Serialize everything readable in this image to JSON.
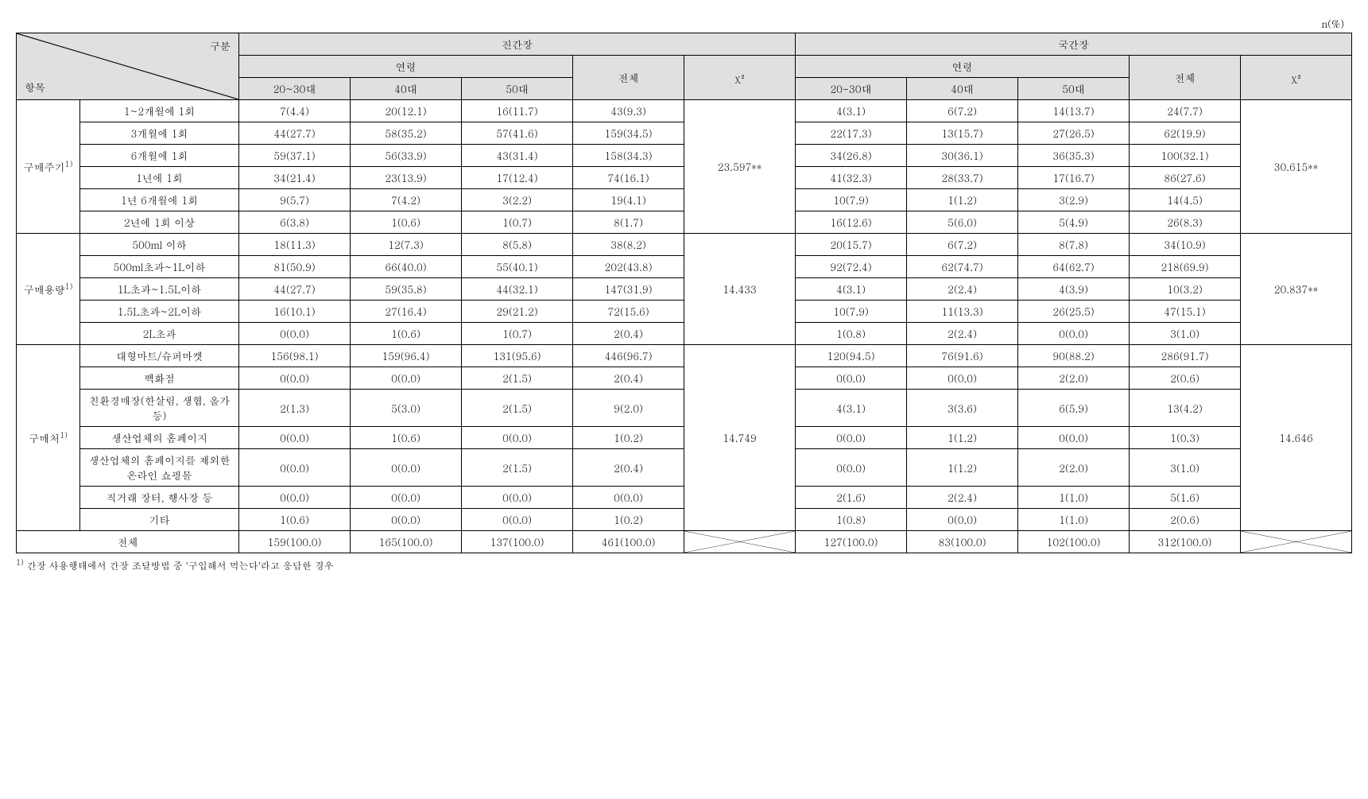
{
  "unit": "n(%)",
  "headers": {
    "diag_top": "구분",
    "diag_bottom": "항목",
    "group1": "진간장",
    "group2": "국간장",
    "age": "연령",
    "total": "전체",
    "chi": "χ²",
    "age_cols_g1": [
      "20~30대",
      "40대",
      "50대"
    ],
    "age_cols_g2": [
      "20-30대",
      "40대",
      "50대"
    ]
  },
  "sections": [
    {
      "name": "구매주기",
      "sup": "1)",
      "chi1": "23.597**",
      "chi2": "30.615**",
      "rows": [
        {
          "label": "1~2개월에 1회",
          "g1": [
            "7(4.4)",
            "20(12.1)",
            "16(11.7)",
            "43(9.3)"
          ],
          "g2": [
            "4(3.1)",
            "6(7.2)",
            "14(13.7)",
            "24(7.7)"
          ]
        },
        {
          "label": "3개월에 1회",
          "g1": [
            "44(27.7)",
            "58(35.2)",
            "57(41.6)",
            "159(34.5)"
          ],
          "g2": [
            "22(17.3)",
            "13(15.7)",
            "27(26.5)",
            "62(19.9)"
          ]
        },
        {
          "label": "6개월에 1회",
          "g1": [
            "59(37.1)",
            "56(33.9)",
            "43(31.4)",
            "158(34.3)"
          ],
          "g2": [
            "34(26.8)",
            "30(36.1)",
            "36(35.3)",
            "100(32.1)"
          ]
        },
        {
          "label": "1년에 1회",
          "g1": [
            "34(21.4)",
            "23(13.9)",
            "17(12.4)",
            "74(16.1)"
          ],
          "g2": [
            "41(32.3)",
            "28(33.7)",
            "17(16.7)",
            "86(27.6)"
          ]
        },
        {
          "label": "1년 6개월에 1회",
          "g1": [
            "9(5.7)",
            "7(4.2)",
            "3(2.2)",
            "19(4.1)"
          ],
          "g2": [
            "10(7.9)",
            "1(1.2)",
            "3(2.9)",
            "14(4.5)"
          ]
        },
        {
          "label": "2년에 1회 이상",
          "g1": [
            "6(3.8)",
            "1(0.6)",
            "1(0.7)",
            "8(1.7)"
          ],
          "g2": [
            "16(12.6)",
            "5(6.0)",
            "5(4.9)",
            "26(8.3)"
          ]
        }
      ]
    },
    {
      "name": "구매용량",
      "sup": "1)",
      "chi1": "14.433",
      "chi2": "20.837**",
      "rows": [
        {
          "label": "500ml 이하",
          "g1": [
            "18(11.3)",
            "12(7.3)",
            "8(5.8)",
            "38(8.2)"
          ],
          "g2": [
            "20(15.7)",
            "6(7.2)",
            "8(7.8)",
            "34(10.9)"
          ]
        },
        {
          "label": "500ml초과~1L이하",
          "g1": [
            "81(50.9)",
            "66(40.0)",
            "55(40.1)",
            "202(43.8)"
          ],
          "g2": [
            "92(72.4)",
            "62(74.7)",
            "64(62.7)",
            "218(69.9)"
          ]
        },
        {
          "label": "1L초과~1.5L이하",
          "g1": [
            "44(27.7)",
            "59(35.8)",
            "44(32.1)",
            "147(31.9)"
          ],
          "g2": [
            "4(3.1)",
            "2(2.4)",
            "4(3.9)",
            "10(3.2)"
          ]
        },
        {
          "label": "1.5L초과~2L이하",
          "g1": [
            "16(10.1)",
            "27(16.4)",
            "29(21.2)",
            "72(15.6)"
          ],
          "g2": [
            "10(7.9)",
            "11(13.3)",
            "26(25.5)",
            "47(15.1)"
          ]
        },
        {
          "label": "2L초과",
          "g1": [
            "0(0.0)",
            "1(0.6)",
            "1(0.7)",
            "2(0.4)"
          ],
          "g2": [
            "1(0.8)",
            "2(2.4)",
            "0(0.0)",
            "3(1.0)"
          ]
        }
      ]
    },
    {
      "name": "구매처",
      "sup": "1)",
      "chi1": "14.749",
      "chi2": "14.646",
      "rows": [
        {
          "label": "대형마트/슈퍼마켓",
          "g1": [
            "156(98.1)",
            "159(96.4)",
            "131(95.6)",
            "446(96.7)"
          ],
          "g2": [
            "120(94.5)",
            "76(91.6)",
            "90(88.2)",
            "286(91.7)"
          ]
        },
        {
          "label": "백화점",
          "g1": [
            "0(0.0)",
            "0(0.0)",
            "2(1.5)",
            "2(0.4)"
          ],
          "g2": [
            "0(0.0)",
            "0(0.0)",
            "2(2.0)",
            "2(0.6)"
          ]
        },
        {
          "label": "친환경매장(한살림, 생협, 올가 등)",
          "g1": [
            "2(1.3)",
            "5(3.0)",
            "2(1.5)",
            "9(2.0)"
          ],
          "g2": [
            "4(3.1)",
            "3(3.6)",
            "6(5.9)",
            "13(4.2)"
          ]
        },
        {
          "label": "생산업체의 홈페이지",
          "g1": [
            "0(0.0)",
            "1(0.6)",
            "0(0.0)",
            "1(0.2)"
          ],
          "g2": [
            "0(0.0)",
            "1(1.2)",
            "0(0.0)",
            "1(0.3)"
          ]
        },
        {
          "label": "생산업체의 홈페이지를 제외한\n온라인 쇼핑몰",
          "g1": [
            "0(0.0)",
            "0(0.0)",
            "2(1.5)",
            "2(0.4)"
          ],
          "g2": [
            "0(0.0)",
            "1(1.2)",
            "2(2.0)",
            "3(1.0)"
          ]
        },
        {
          "label": "직거래 장터, 행사장 등",
          "g1": [
            "0(0.0)",
            "0(0.0)",
            "0(0.0)",
            "0(0.0)"
          ],
          "g2": [
            "2(1.6)",
            "2(2.4)",
            "1(1.0)",
            "5(1.6)"
          ]
        },
        {
          "label": "기타",
          "g1": [
            "1(0.6)",
            "0(0.0)",
            "0(0.0)",
            "1(0.2)"
          ],
          "g2": [
            "1(0.8)",
            "0(0.0)",
            "1(1.0)",
            "2(0.6)"
          ]
        }
      ]
    }
  ],
  "total_row": {
    "label": "전체",
    "g1": [
      "159(100.0)",
      "165(100.0)",
      "137(100.0)",
      "461(100.0)"
    ],
    "g2": [
      "127(100.0)",
      "83(100.0)",
      "102(100.0)",
      "312(100.0)"
    ]
  },
  "footnote_sup": "1)",
  "footnote": " 간장 사용행태에서 간장 조달방법 중 '구입해서 먹는다'라고 응답한 경우"
}
